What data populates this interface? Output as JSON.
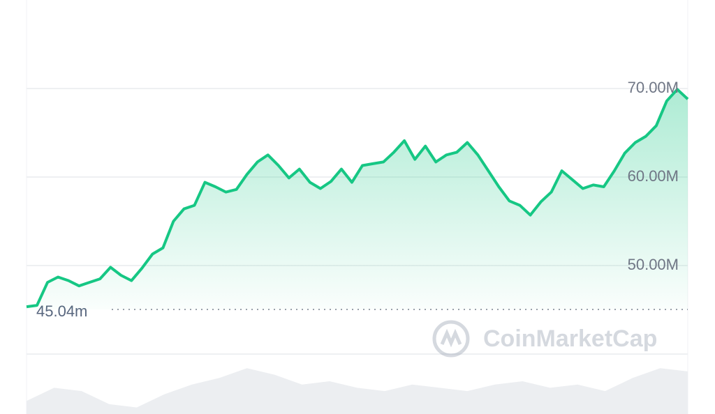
{
  "chart_data": {
    "type": "area",
    "color": "#16c784",
    "values": [
      45.35,
      45.5,
      48.1,
      48.7,
      48.3,
      47.7,
      48.1,
      48.5,
      49.8,
      48.9,
      48.3,
      49.7,
      51.3,
      52.0,
      55.0,
      56.4,
      56.8,
      59.4,
      58.9,
      58.3,
      58.6,
      60.3,
      61.7,
      62.5,
      61.3,
      59.9,
      60.9,
      59.4,
      58.7,
      59.5,
      60.9,
      59.4,
      61.3,
      61.5,
      61.7,
      62.8,
      64.1,
      62.0,
      63.5,
      61.7,
      62.5,
      62.8,
      63.9,
      62.5,
      60.7,
      58.9,
      57.3,
      56.8,
      55.7,
      57.2,
      58.3,
      60.7,
      59.7,
      58.7,
      59.1,
      58.9,
      60.7,
      62.7,
      63.9,
      64.6,
      65.8,
      68.6,
      69.9,
      68.8
    ],
    "ylim": [
      40,
      80
    ],
    "yticks": [
      {
        "value": 50,
        "label": "50.00M"
      },
      {
        "value": 60,
        "label": "60.00M"
      },
      {
        "value": 70,
        "label": "70.00M"
      }
    ],
    "grid": true,
    "baseline": 45.04,
    "baseline_label": "45.04m",
    "watermark": "CoinMarketCap",
    "volume": {
      "color": "#eceef1",
      "ylim": [
        0,
        100
      ],
      "values": [
        20,
        40,
        35,
        15,
        10,
        30,
        45,
        55,
        70,
        60,
        45,
        50,
        40,
        35,
        45,
        40,
        35,
        45,
        50,
        40,
        45,
        35,
        55,
        70,
        65
      ]
    }
  }
}
